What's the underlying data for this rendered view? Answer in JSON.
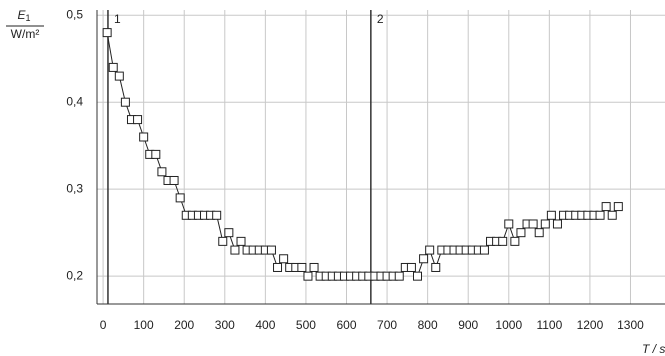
{
  "chart_data": {
    "type": "line",
    "y_label": {
      "symbol": "E",
      "subscript": "1",
      "unit": "W/m²"
    },
    "x_label": "T / s",
    "xlim": [
      -15,
      1390
    ],
    "ylim": [
      0.168,
      0.506
    ],
    "xticks": [
      0,
      100,
      200,
      300,
      400,
      500,
      600,
      700,
      800,
      900,
      1000,
      1100,
      1200,
      1300
    ],
    "yticks": [
      {
        "value": 0.2,
        "label": "0,2"
      },
      {
        "value": 0.3,
        "label": "0,3"
      },
      {
        "value": 0.4,
        "label": "0,4"
      },
      {
        "value": 0.5,
        "label": "0,5"
      }
    ],
    "grid": true,
    "markers": [
      {
        "x": 12,
        "label": "1"
      },
      {
        "x": 660,
        "label": "2"
      }
    ],
    "series": [
      {
        "color": "#222222",
        "marker": "square",
        "x": [
          10,
          25,
          40,
          55,
          70,
          85,
          100,
          115,
          130,
          145,
          160,
          175,
          190,
          205,
          220,
          235,
          250,
          265,
          280,
          295,
          310,
          325,
          340,
          355,
          370,
          385,
          400,
          415,
          430,
          445,
          460,
          475,
          490,
          505,
          520,
          535,
          550,
          565,
          580,
          595,
          610,
          625,
          640,
          655,
          670,
          685,
          700,
          715,
          730,
          745,
          760,
          775,
          790,
          805,
          820,
          835,
          850,
          865,
          880,
          895,
          910,
          925,
          940,
          955,
          970,
          985,
          1000,
          1015,
          1030,
          1045,
          1060,
          1075,
          1090,
          1105,
          1120,
          1135,
          1150,
          1165,
          1180,
          1195,
          1210,
          1225,
          1240,
          1255,
          1270
        ],
        "values": [
          0.48,
          0.44,
          0.43,
          0.4,
          0.38,
          0.38,
          0.36,
          0.34,
          0.34,
          0.32,
          0.31,
          0.31,
          0.29,
          0.27,
          0.27,
          0.27,
          0.27,
          0.27,
          0.27,
          0.24,
          0.25,
          0.23,
          0.24,
          0.23,
          0.23,
          0.23,
          0.23,
          0.23,
          0.21,
          0.22,
          0.21,
          0.21,
          0.21,
          0.2,
          0.21,
          0.2,
          0.2,
          0.2,
          0.2,
          0.2,
          0.2,
          0.2,
          0.2,
          0.2,
          0.2,
          0.2,
          0.2,
          0.2,
          0.2,
          0.21,
          0.21,
          0.2,
          0.22,
          0.23,
          0.21,
          0.23,
          0.23,
          0.23,
          0.23,
          0.23,
          0.23,
          0.23,
          0.23,
          0.24,
          0.24,
          0.24,
          0.26,
          0.24,
          0.25,
          0.26,
          0.26,
          0.25,
          0.26,
          0.27,
          0.26,
          0.27,
          0.27,
          0.27,
          0.27,
          0.27,
          0.27,
          0.27,
          0.28,
          0.27,
          0.28
        ]
      }
    ]
  }
}
